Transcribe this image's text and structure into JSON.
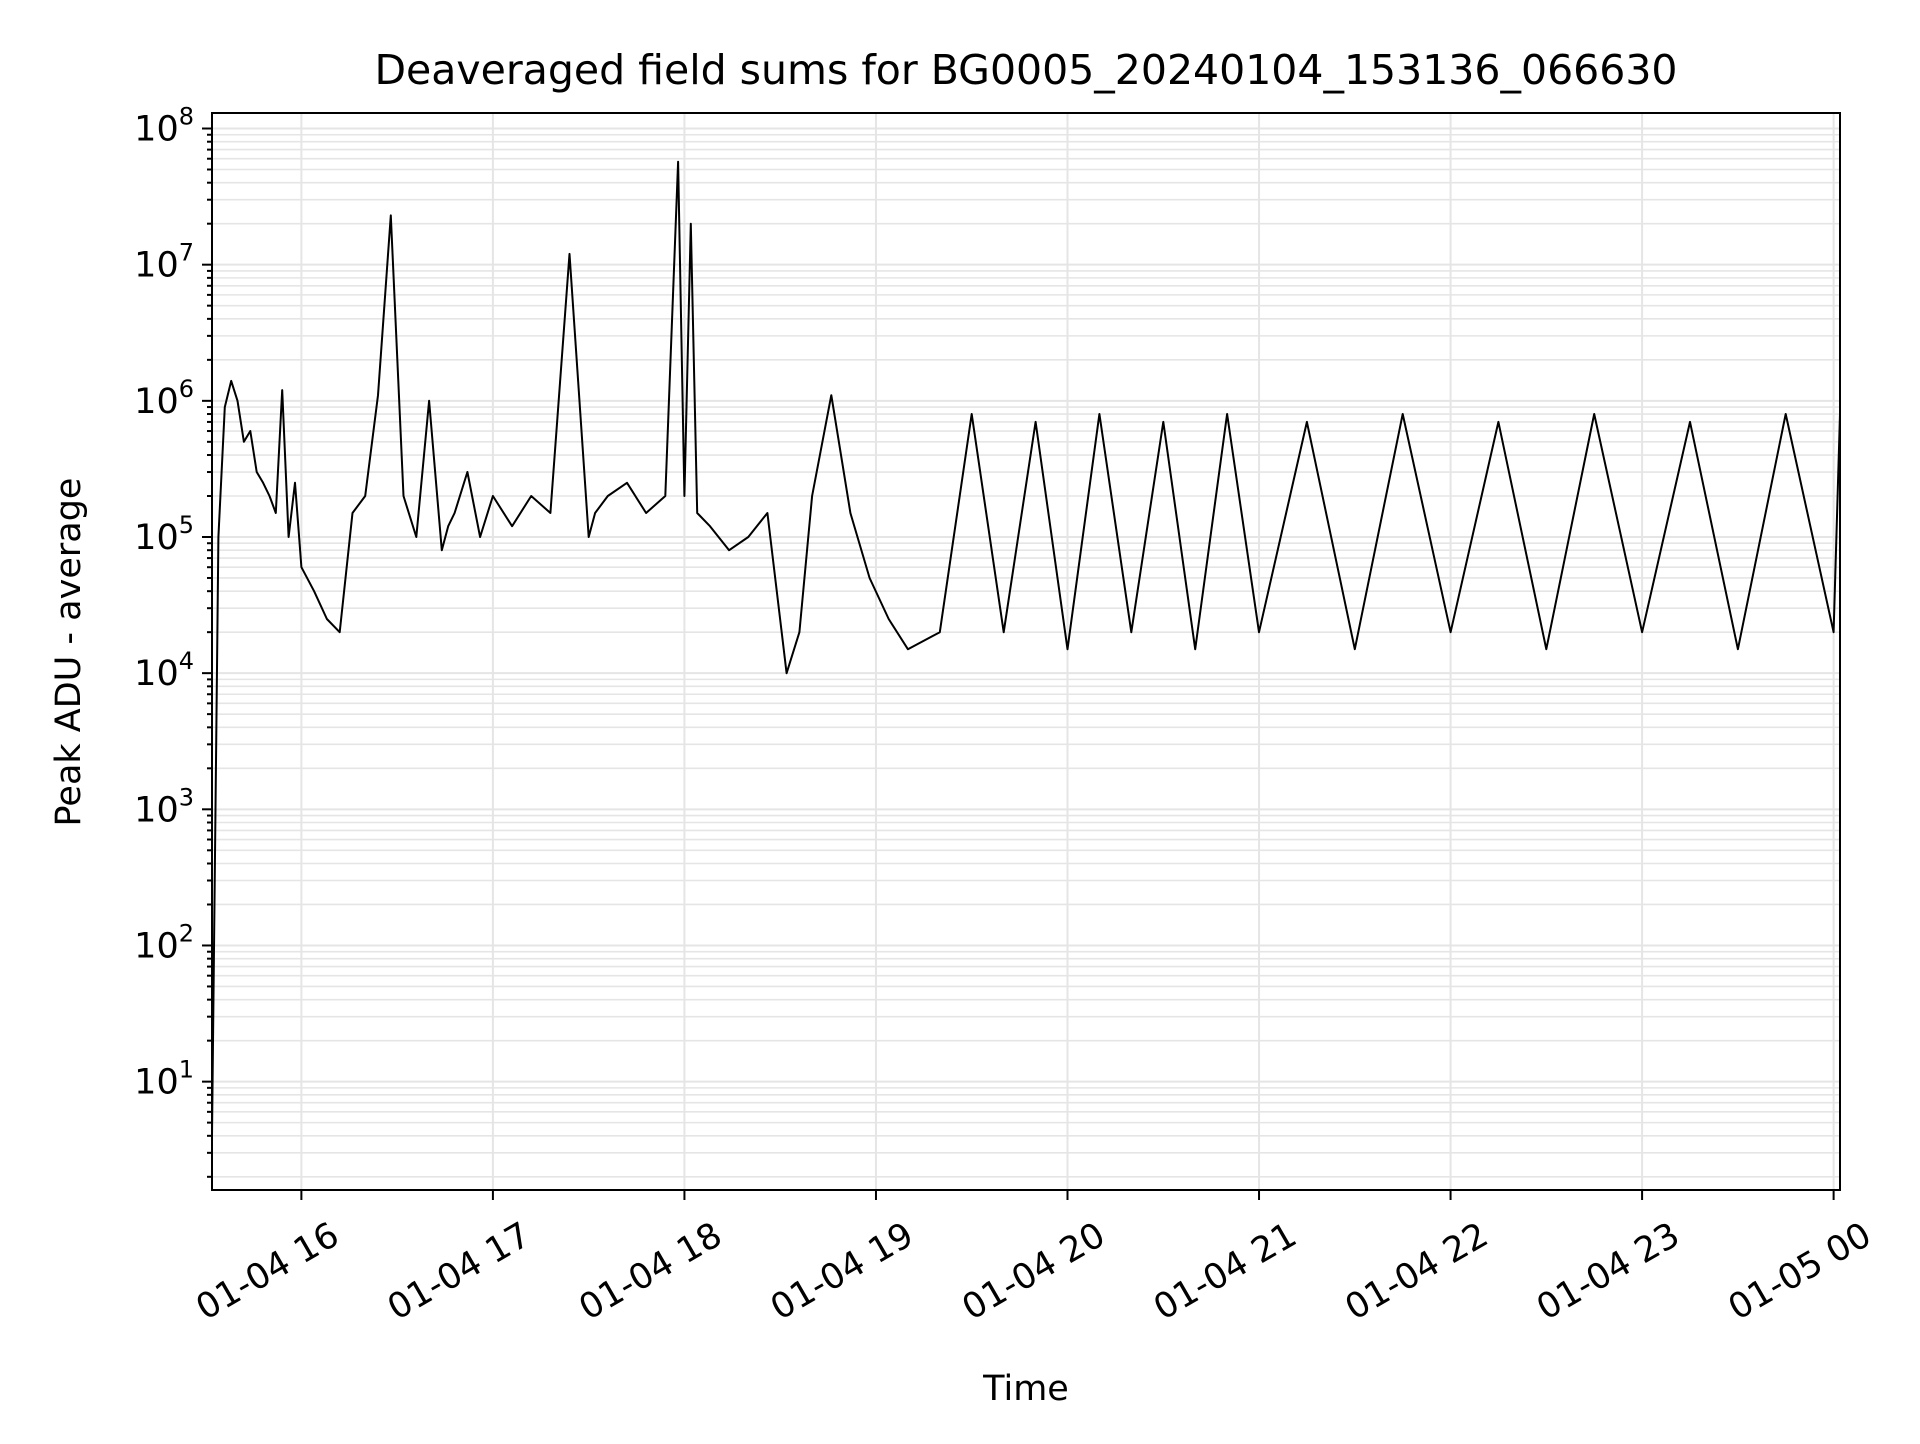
{
  "chart_data": {
    "type": "line",
    "title": "Deaveraged field sums for BG0005_20240104_153136_066630",
    "xlabel": "Time",
    "ylabel": "Peak ADU - average",
    "yscale": "log",
    "ylim": [
      1.6,
      130000000
    ],
    "xlim": [
      "2024-01-04 15:32",
      "2024-01-05 00:02"
    ],
    "grid": true,
    "legend": "none",
    "line_color": "#000000",
    "grid_color": "#e5e5e5",
    "x_ticks": [
      "01-04 16",
      "01-04 17",
      "01-04 18",
      "01-04 19",
      "01-04 20",
      "01-04 21",
      "01-04 22",
      "01-04 23",
      "01-05 00"
    ],
    "y_ticks": [
      {
        "base": "10",
        "exp": "1"
      },
      {
        "base": "10",
        "exp": "2"
      },
      {
        "base": "10",
        "exp": "3"
      },
      {
        "base": "10",
        "exp": "4"
      },
      {
        "base": "10",
        "exp": "5"
      },
      {
        "base": "10",
        "exp": "6"
      },
      {
        "base": "10",
        "exp": "7"
      },
      {
        "base": "10",
        "exp": "8"
      }
    ],
    "series": [
      {
        "x": [
          "2024-01-04 15:32",
          "2024-01-04 15:34",
          "2024-01-04 15:36",
          "2024-01-04 15:38",
          "2024-01-04 15:40",
          "2024-01-04 15:42",
          "2024-01-04 15:44",
          "2024-01-04 15:46",
          "2024-01-04 15:48",
          "2024-01-04 15:50",
          "2024-01-04 15:52",
          "2024-01-04 15:54",
          "2024-01-04 15:56",
          "2024-01-04 15:58",
          "2024-01-04 16:00",
          "2024-01-04 16:04",
          "2024-01-04 16:08",
          "2024-01-04 16:12",
          "2024-01-04 16:16",
          "2024-01-04 16:20",
          "2024-01-04 16:24",
          "2024-01-04 16:28",
          "2024-01-04 16:32",
          "2024-01-04 16:36",
          "2024-01-04 16:40",
          "2024-01-04 16:44",
          "2024-01-04 16:46",
          "2024-01-04 16:48",
          "2024-01-04 16:52",
          "2024-01-04 16:56",
          "2024-01-04 17:00",
          "2024-01-04 17:06",
          "2024-01-04 17:12",
          "2024-01-04 17:18",
          "2024-01-04 17:24",
          "2024-01-04 17:30",
          "2024-01-04 17:32",
          "2024-01-04 17:36",
          "2024-01-04 17:42",
          "2024-01-04 17:48",
          "2024-01-04 17:54",
          "2024-01-04 17:58",
          "2024-01-04 18:00",
          "2024-01-04 18:02",
          "2024-01-04 18:04",
          "2024-01-04 18:08",
          "2024-01-04 18:14",
          "2024-01-04 18:20",
          "2024-01-04 18:26",
          "2024-01-04 18:32",
          "2024-01-04 18:36",
          "2024-01-04 18:40",
          "2024-01-04 18:46",
          "2024-01-04 18:52",
          "2024-01-04 18:58",
          "2024-01-04 19:04",
          "2024-01-04 19:10",
          "2024-01-04 19:20",
          "2024-01-04 19:30",
          "2024-01-04 19:40",
          "2024-01-04 19:50",
          "2024-01-04 20:00",
          "2024-01-04 20:10",
          "2024-01-04 20:20",
          "2024-01-04 20:30",
          "2024-01-04 20:40",
          "2024-01-04 20:50",
          "2024-01-04 21:00",
          "2024-01-04 21:15",
          "2024-01-04 21:30",
          "2024-01-04 21:45",
          "2024-01-04 22:00",
          "2024-01-04 22:15",
          "2024-01-04 22:30",
          "2024-01-04 22:45",
          "2024-01-04 23:00",
          "2024-01-04 23:15",
          "2024-01-04 23:30",
          "2024-01-04 23:45",
          "2024-01-05 00:00",
          "2024-01-05 00:02"
        ],
        "y": [
          4,
          100000,
          900000,
          1400000,
          1000000,
          500000,
          600000,
          300000,
          250000,
          200000,
          150000,
          1200000,
          100000,
          250000,
          60000,
          40000,
          25000,
          20000,
          150000,
          200000,
          1100000,
          23000000,
          200000,
          100000,
          1000000,
          80000,
          120000,
          150000,
          300000,
          100000,
          200000,
          120000,
          200000,
          150000,
          12000000,
          100000,
          150000,
          200000,
          250000,
          150000,
          200000,
          57000000,
          200000,
          20000000,
          150000,
          120000,
          80000,
          100000,
          150000,
          10000,
          20000,
          200000,
          1100000,
          150000,
          50000,
          25000,
          15000,
          20000,
          800000,
          20000,
          700000,
          15000,
          800000,
          20000,
          700000,
          15000,
          800000,
          20000,
          700000,
          15000,
          800000,
          20000,
          700000,
          15000,
          800000,
          20000,
          700000,
          15000,
          800000,
          20000,
          800000
        ]
      }
    ]
  }
}
